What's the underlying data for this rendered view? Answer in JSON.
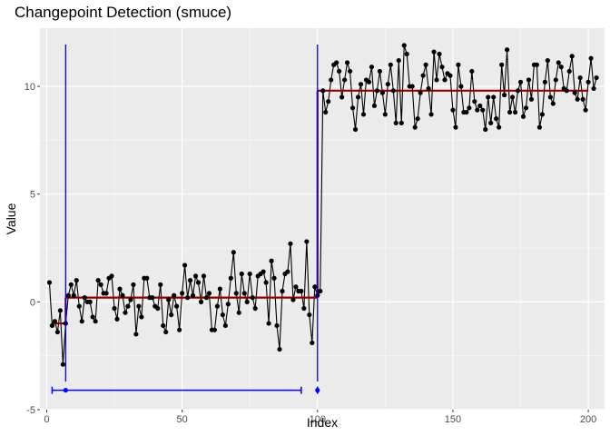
{
  "chart_data": {
    "type": "line",
    "title": "Changepoint Detection (smuce)",
    "xlabel": "Index",
    "ylabel": "Value",
    "xlim": [
      -2.5,
      206
    ],
    "ylim": [
      -5,
      12.7
    ],
    "x_ticks": [
      0,
      50,
      100,
      150,
      200
    ],
    "y_ticks": [
      -5,
      0,
      5,
      10
    ],
    "grid": true,
    "series": [
      {
        "marker": "point",
        "color": "#000000",
        "x_start": 1,
        "values": [
          0.9,
          -1.1,
          -0.9,
          -1.4,
          -0.4,
          -2.9,
          -1.0,
          0.3,
          0.8,
          0.3,
          1.0,
          -0.2,
          -0.9,
          0.2,
          0.0,
          0.0,
          -0.7,
          -0.9,
          1.0,
          0.8,
          0.4,
          0.4,
          1.1,
          1.2,
          -0.3,
          -0.8,
          0.6,
          0.3,
          -0.5,
          -0.2,
          0.1,
          0.8,
          -1.5,
          -0.2,
          -0.7,
          1.1,
          1.1,
          0.2,
          0.2,
          -0.2,
          -0.3,
          0.8,
          -1.1,
          -1.4,
          0.1,
          -0.6,
          0.3,
          -0.2,
          -1.3,
          0.4,
          1.7,
          0.2,
          1.0,
          0.3,
          1.2,
          0.9,
          0.0,
          1.2,
          0.2,
          0.4,
          -1.3,
          -1.3,
          -0.2,
          0.6,
          -0.6,
          -1.1,
          -0.1,
          1.1,
          2.3,
          0.4,
          -0.5,
          1.3,
          0.4,
          0.0,
          1.3,
          0.2,
          -0.3,
          1.2,
          1.3,
          1.4,
          0.9,
          -1.0,
          1.9,
          1.1,
          -1.1,
          -2.2,
          0.5,
          1.3,
          1.4,
          2.7,
          0.1,
          0.7,
          0.5,
          0.5,
          -0.3,
          2.8,
          -0.6,
          -1.9,
          0.7,
          0.3,
          0.5,
          9.8,
          8.8,
          9.3,
          10.3,
          11.0,
          11.1,
          10.7,
          9.5,
          10.3,
          11.1,
          10.7,
          9.0,
          8.0,
          9.5,
          10.1,
          8.7,
          10.3,
          10.2,
          10.9,
          9.1,
          9.8,
          10.7,
          9.7,
          8.7,
          10.1,
          11.0,
          9.8,
          8.3,
          11.2,
          8.3,
          11.9,
          11.5,
          10.0,
          10.0,
          8.1,
          8.5,
          9.7,
          10.5,
          11.0,
          9.9,
          8.7,
          11.6,
          10.3,
          11.5,
          10.9,
          10.3,
          10.6,
          10.5,
          8.9,
          8.1,
          11.0,
          10.0,
          8.8,
          8.8,
          9.0,
          10.7,
          9.3,
          8.9,
          9.1,
          8.9,
          8.0,
          9.5,
          8.3,
          9.5,
          8.5,
          8.1,
          11.0,
          9.6,
          11.7,
          8.8,
          9.5,
          8.8,
          9.8,
          10.2,
          8.6,
          9.0,
          10.3,
          9.4,
          11.0,
          11.0,
          8.1,
          8.7,
          10.2,
          11.2,
          9.5,
          9.2,
          10.3,
          11.1,
          10.9,
          9.9,
          9.8,
          10.7,
          11.4,
          9.7,
          9.4,
          10.4,
          9.4,
          8.9,
          10.2,
          11.3,
          9.9,
          10.4
        ]
      },
      {
        "name": "fit",
        "color": "#8b0000",
        "segments": [
          {
            "x0": 2,
            "x1": 7,
            "y": -1.0
          },
          {
            "x0": 7,
            "x1": 100,
            "y": 0.2
          },
          {
            "x0": 100,
            "x1": 200,
            "y": 9.8
          }
        ]
      }
    ],
    "changepoints": [
      {
        "x": 7,
        "color": "#0000ff"
      },
      {
        "x": 100,
        "color": "#0000ff"
      }
    ],
    "confidence_intervals": [
      {
        "center": 7,
        "lower": 2,
        "upper": 94,
        "y": -4.1,
        "color": "#0000ff"
      },
      {
        "center": 100,
        "lower": 100,
        "upper": 100,
        "y": -4.1,
        "color": "#0000ff"
      }
    ]
  }
}
